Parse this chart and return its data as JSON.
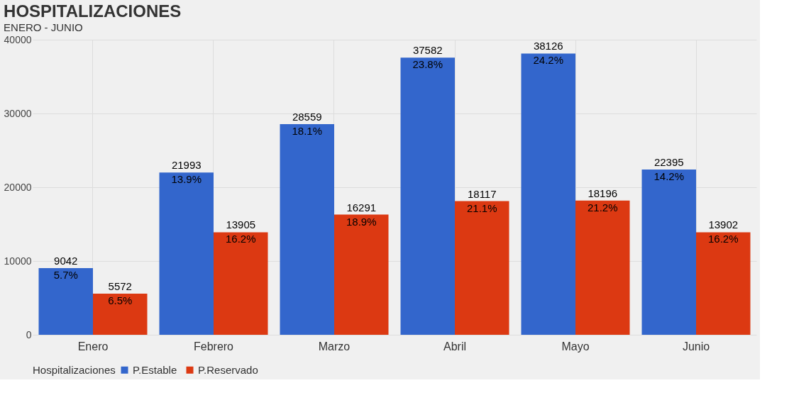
{
  "chart_data": {
    "type": "bar",
    "title": "HOSPITALIZACIONES",
    "subtitle": "ENERO - JUNIO",
    "categories": [
      "Enero",
      "Febrero",
      "Marzo",
      "Abril",
      "Mayo",
      "Junio"
    ],
    "series": [
      {
        "name": "P.Estable",
        "color": "#3366cc",
        "values": [
          9042,
          21993,
          28559,
          37582,
          38126,
          22395
        ],
        "value_labels": [
          "9042",
          "21993",
          "28559",
          "37582",
          "38126",
          "22395"
        ]
      },
      {
        "name": "P.Reservado",
        "color": "#dc3912",
        "values": [
          5572,
          13905,
          16291,
          18117,
          18196,
          13902
        ],
        "value_labels": [
          "5572",
          "13905",
          "16291",
          "18117",
          "18196",
          "13902"
        ]
      }
    ],
    "annotations": [
      {
        "text": "5.7%",
        "x": "Enero",
        "y": 9042
      },
      {
        "text": "13.9%",
        "x": "Febrero",
        "y": 21993
      },
      {
        "text": "18.1%",
        "x": "Marzo",
        "y": 28559
      },
      {
        "text": "23.8%",
        "x": "Abril",
        "y": 37582
      },
      {
        "text": "24.2%",
        "x": "Mayo",
        "y": 38126
      },
      {
        "text": "14.2%",
        "x": "Junio",
        "y": 22395
      },
      {
        "text": "6.5%",
        "x": "Enero",
        "y": 5572
      },
      {
        "text": "16.2%",
        "x": "Febrero",
        "y": 13905
      },
      {
        "text": "18.9%",
        "x": "Marzo",
        "y": 16291
      },
      {
        "text": "21.1%",
        "x": "Abril",
        "y": 18117
      },
      {
        "text": "21.2%",
        "x": "Mayo",
        "y": 18196
      },
      {
        "text": "16.2%",
        "x": "Junio",
        "y": 13902
      }
    ],
    "legend_title": "Hospitalizaciones",
    "legend": "bottom",
    "ylim": [
      0,
      40000
    ],
    "yticks": [
      0,
      10000,
      20000,
      30000,
      40000
    ],
    "grid": true
  }
}
